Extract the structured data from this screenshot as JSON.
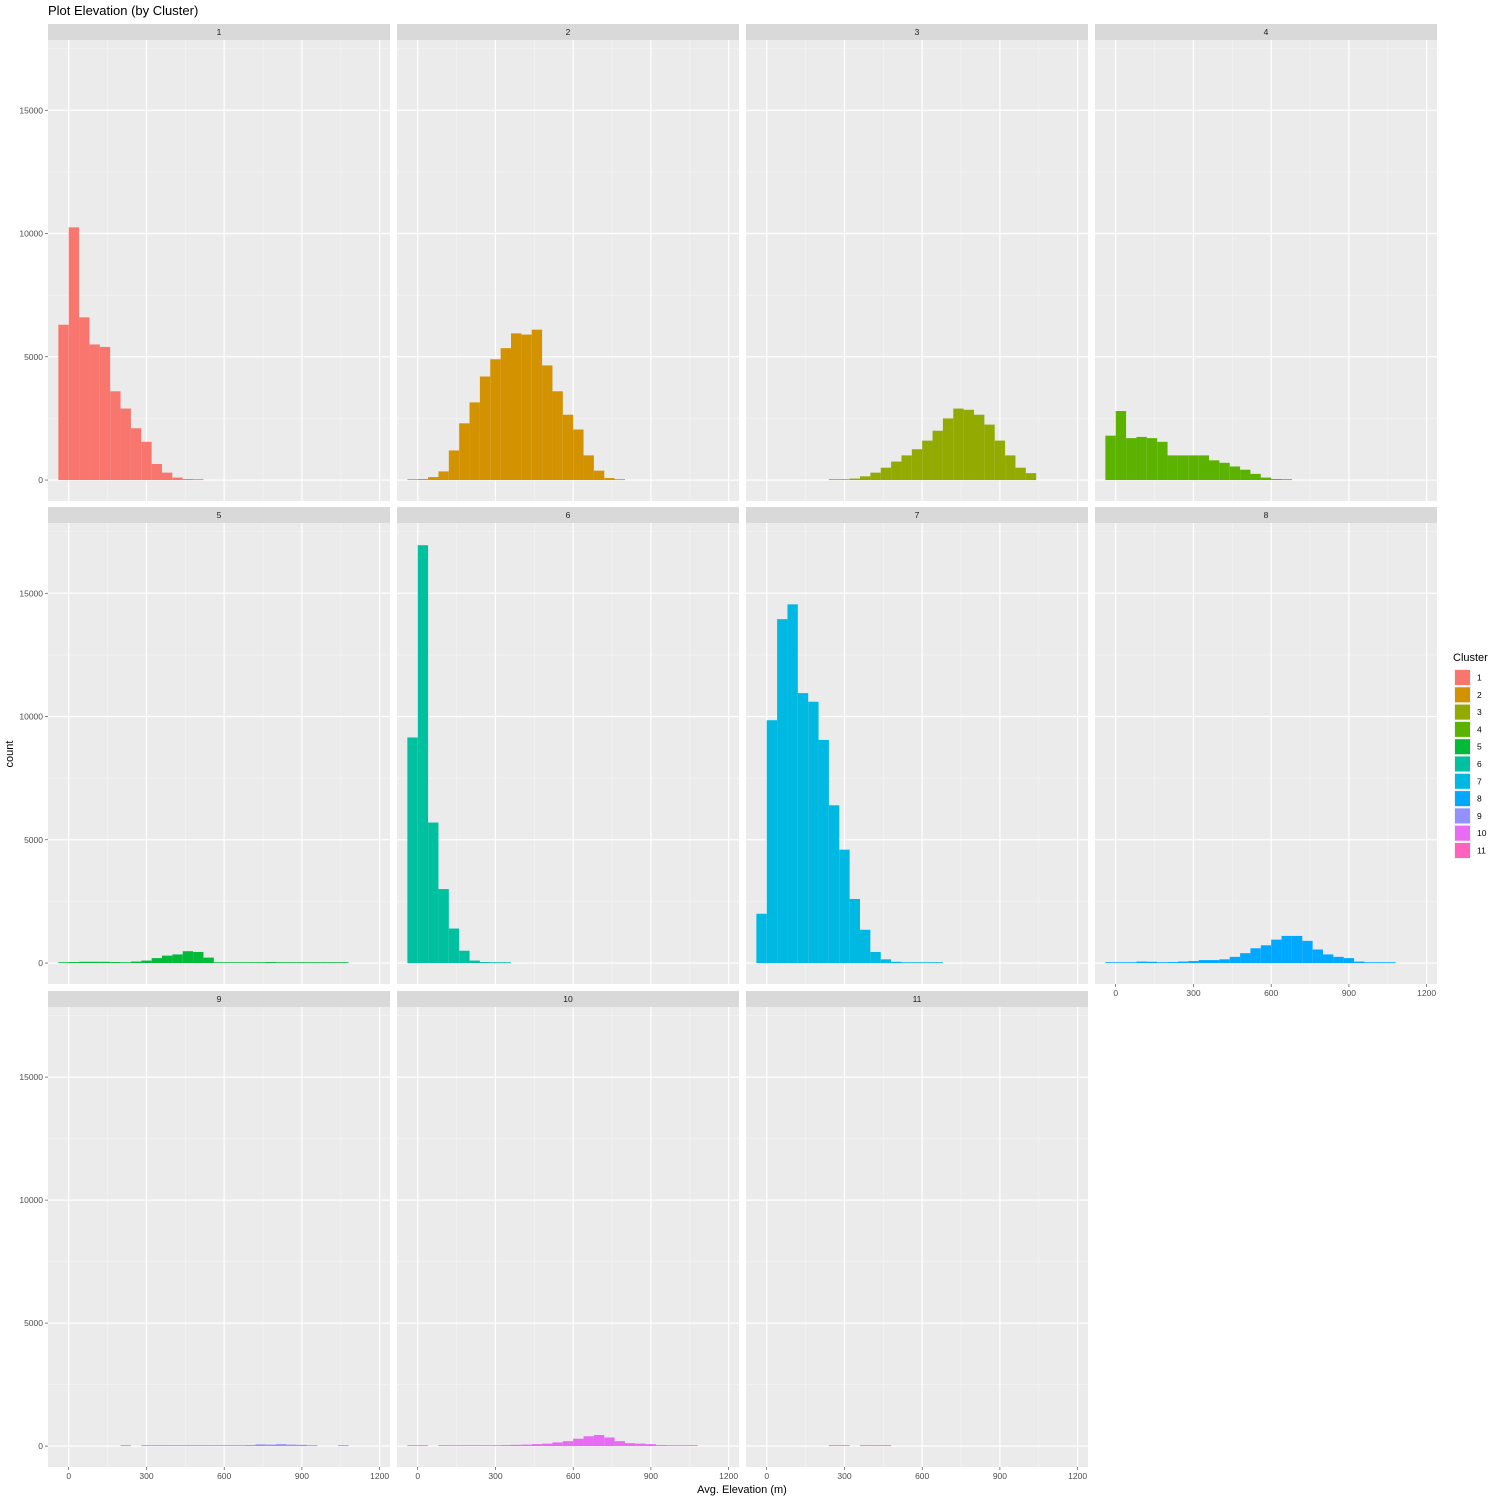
{
  "chart_data": {
    "type": "bar",
    "title": "Plot Elevation (by Cluster)",
    "xlabel": "Avg. Elevation (m)",
    "ylabel": "count",
    "xlim": [
      -80,
      1240
    ],
    "ylim": [
      -850,
      17850
    ],
    "x_ticks": [
      "0",
      "300",
      "600",
      "900",
      "1200"
    ],
    "y_ticks": [
      "0",
      "5000",
      "10000",
      "15000"
    ],
    "bin_width": 40,
    "grid": true,
    "legend": {
      "title": "Cluster",
      "position": "right"
    },
    "facets": [
      {
        "name": "1",
        "color": "#F8766D",
        "x": [
          -20,
          20,
          60,
          100,
          140,
          180,
          220,
          260,
          300,
          340,
          380,
          420,
          460,
          500
        ],
        "values": [
          6300,
          10250,
          6600,
          5500,
          5400,
          3600,
          2900,
          2100,
          1550,
          650,
          300,
          100,
          40,
          10
        ]
      },
      {
        "name": "2",
        "color": "#D39200",
        "x": [
          -20,
          20,
          60,
          100,
          140,
          180,
          220,
          260,
          300,
          340,
          380,
          420,
          460,
          500,
          540,
          580,
          620,
          660,
          700,
          740,
          780
        ],
        "values": [
          20,
          40,
          120,
          350,
          1200,
          2300,
          3150,
          4200,
          4900,
          5350,
          5950,
          5900,
          6100,
          4650,
          3600,
          2650,
          2050,
          1000,
          380,
          80,
          20
        ]
      },
      {
        "name": "3",
        "color": "#93AA00",
        "x": [
          260,
          300,
          340,
          380,
          420,
          460,
          500,
          540,
          580,
          620,
          660,
          700,
          740,
          780,
          820,
          860,
          900,
          940,
          980,
          1020
        ],
        "values": [
          10,
          20,
          60,
          150,
          300,
          500,
          750,
          1000,
          1250,
          1600,
          2000,
          2500,
          2900,
          2850,
          2650,
          2250,
          1600,
          1000,
          500,
          280
        ]
      },
      {
        "name": "4",
        "color": "#5BB300",
        "x": [
          -20,
          20,
          60,
          100,
          140,
          180,
          220,
          260,
          300,
          340,
          380,
          420,
          460,
          500,
          540,
          580,
          620,
          660
        ],
        "values": [
          1800,
          2800,
          1700,
          1750,
          1700,
          1550,
          1000,
          1000,
          1000,
          1000,
          800,
          700,
          550,
          420,
          250,
          100,
          40,
          10
        ]
      },
      {
        "name": "5",
        "color": "#00BA38",
        "x": [
          -20,
          20,
          60,
          100,
          140,
          180,
          220,
          260,
          300,
          340,
          380,
          420,
          460,
          500,
          540,
          580,
          620,
          660,
          700,
          740,
          780,
          820,
          860,
          900,
          940,
          980,
          1020,
          1060
        ],
        "values": [
          20,
          40,
          50,
          50,
          50,
          40,
          30,
          60,
          100,
          200,
          300,
          350,
          480,
          450,
          220,
          30,
          20,
          20,
          10,
          30,
          40,
          30,
          30,
          30,
          20,
          20,
          10,
          10
        ]
      },
      {
        "name": "6",
        "color": "#00C19F",
        "x": [
          -20,
          20,
          60,
          100,
          140,
          180,
          220,
          260,
          300,
          340
        ],
        "values": [
          9150,
          16950,
          5700,
          3000,
          1400,
          500,
          100,
          40,
          20,
          10
        ]
      },
      {
        "name": "7",
        "color": "#00B9E3",
        "x": [
          -20,
          20,
          60,
          100,
          140,
          180,
          220,
          260,
          300,
          340,
          380,
          420,
          460,
          500,
          540,
          580,
          620,
          660
        ],
        "values": [
          2000,
          9850,
          13950,
          14550,
          10950,
          10600,
          9050,
          6400,
          4600,
          2600,
          1350,
          450,
          150,
          50,
          20,
          10,
          5,
          2
        ]
      },
      {
        "name": "8",
        "color": "#00A9FF",
        "x": [
          -20,
          20,
          60,
          100,
          140,
          180,
          220,
          260,
          300,
          340,
          380,
          420,
          460,
          500,
          540,
          580,
          620,
          660,
          700,
          740,
          780,
          820,
          860,
          900,
          940,
          980,
          1020,
          1060
        ],
        "values": [
          10,
          20,
          30,
          60,
          50,
          30,
          40,
          60,
          80,
          120,
          120,
          150,
          250,
          400,
          600,
          720,
          950,
          1100,
          1100,
          900,
          550,
          350,
          250,
          200,
          60,
          30,
          30,
          10
        ]
      },
      {
        "name": "9",
        "color": "#9590FF",
        "x": [
          220,
          300,
          340,
          380,
          420,
          460,
          500,
          540,
          580,
          620,
          660,
          700,
          740,
          780,
          820,
          860,
          900,
          940,
          1060
        ],
        "values": [
          30,
          10,
          10,
          10,
          10,
          10,
          10,
          10,
          10,
          20,
          20,
          40,
          70,
          60,
          80,
          60,
          50,
          20,
          20
        ]
      },
      {
        "name": "10",
        "color": "#E76BF3",
        "x": [
          -20,
          20,
          100,
          140,
          180,
          220,
          260,
          300,
          340,
          380,
          420,
          460,
          500,
          540,
          580,
          620,
          660,
          700,
          740,
          780,
          820,
          860,
          900,
          940,
          980,
          1020,
          1060
        ],
        "values": [
          20,
          20,
          20,
          20,
          20,
          20,
          20,
          30,
          40,
          50,
          60,
          80,
          100,
          150,
          200,
          300,
          400,
          450,
          350,
          200,
          120,
          100,
          80,
          40,
          20,
          20,
          20
        ]
      },
      {
        "name": "11",
        "color": "#FF62BC",
        "x": [
          260,
          300,
          380,
          420,
          460
        ],
        "values": [
          20,
          20,
          20,
          20,
          20
        ]
      }
    ]
  }
}
